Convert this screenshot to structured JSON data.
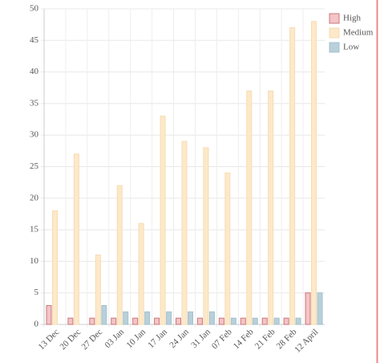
{
  "chart_data": {
    "type": "bar",
    "categories": [
      "13 Dec",
      "20 Dec",
      "27 Dec",
      "03 Jan",
      "10 Jan",
      "17 Jan",
      "24 Jan",
      "31 Jan",
      "07 Feb",
      "14 Feb",
      "21 Feb",
      "28 Feb",
      "12 April"
    ],
    "series": [
      {
        "name": "High",
        "color": "#f4c4c6",
        "stroke": "#c9777c",
        "values": [
          3,
          1,
          1,
          1,
          1,
          1,
          1,
          1,
          1,
          1,
          1,
          1,
          5
        ]
      },
      {
        "name": "Medium",
        "color": "#fde9c9",
        "stroke": "#f5dcb3",
        "values": [
          18,
          27,
          11,
          22,
          16,
          33,
          29,
          28,
          24,
          37,
          37,
          47,
          48
        ]
      },
      {
        "name": "Low",
        "color": "#b8d0da",
        "stroke": "#a5c1cd",
        "values": [
          0,
          0,
          3,
          2,
          2,
          2,
          2,
          2,
          1,
          1,
          1,
          1,
          5
        ]
      }
    ],
    "ylim": [
      0,
      50
    ],
    "yticks": [
      0,
      5,
      10,
      15,
      20,
      25,
      30,
      35,
      40,
      45,
      50
    ],
    "grid": true,
    "legend": "top-right"
  }
}
